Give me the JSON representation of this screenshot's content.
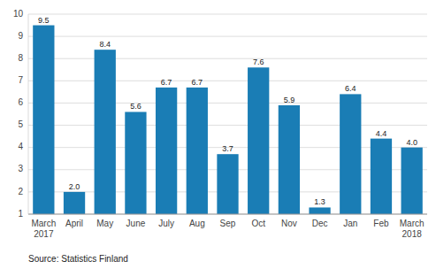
{
  "chart_data": {
    "type": "bar",
    "categories": [
      "March\n2017",
      "April",
      "May",
      "June",
      "July",
      "Aug",
      "Sep",
      "Oct",
      "Nov",
      "Dec",
      "Jan",
      "Feb",
      "March\n2018"
    ],
    "values": [
      9.5,
      2.0,
      8.4,
      5.6,
      6.7,
      6.7,
      3.7,
      7.6,
      5.9,
      1.3,
      6.4,
      4.4,
      4.0
    ],
    "value_labels": [
      "9.5",
      "2.0",
      "8.4",
      "5.6",
      "6.7",
      "6.7",
      "3.7",
      "7.6",
      "5.9",
      "1.3",
      "6.4",
      "4.4",
      "4.0"
    ],
    "color": "#1a7db5",
    "ylim": [
      1,
      10
    ],
    "yticks": [
      1,
      2,
      3,
      4,
      5,
      6,
      7,
      8,
      9,
      10
    ],
    "grid": true,
    "data_labels": true,
    "annotations": [
      "Source: Statistics Finland"
    ]
  }
}
